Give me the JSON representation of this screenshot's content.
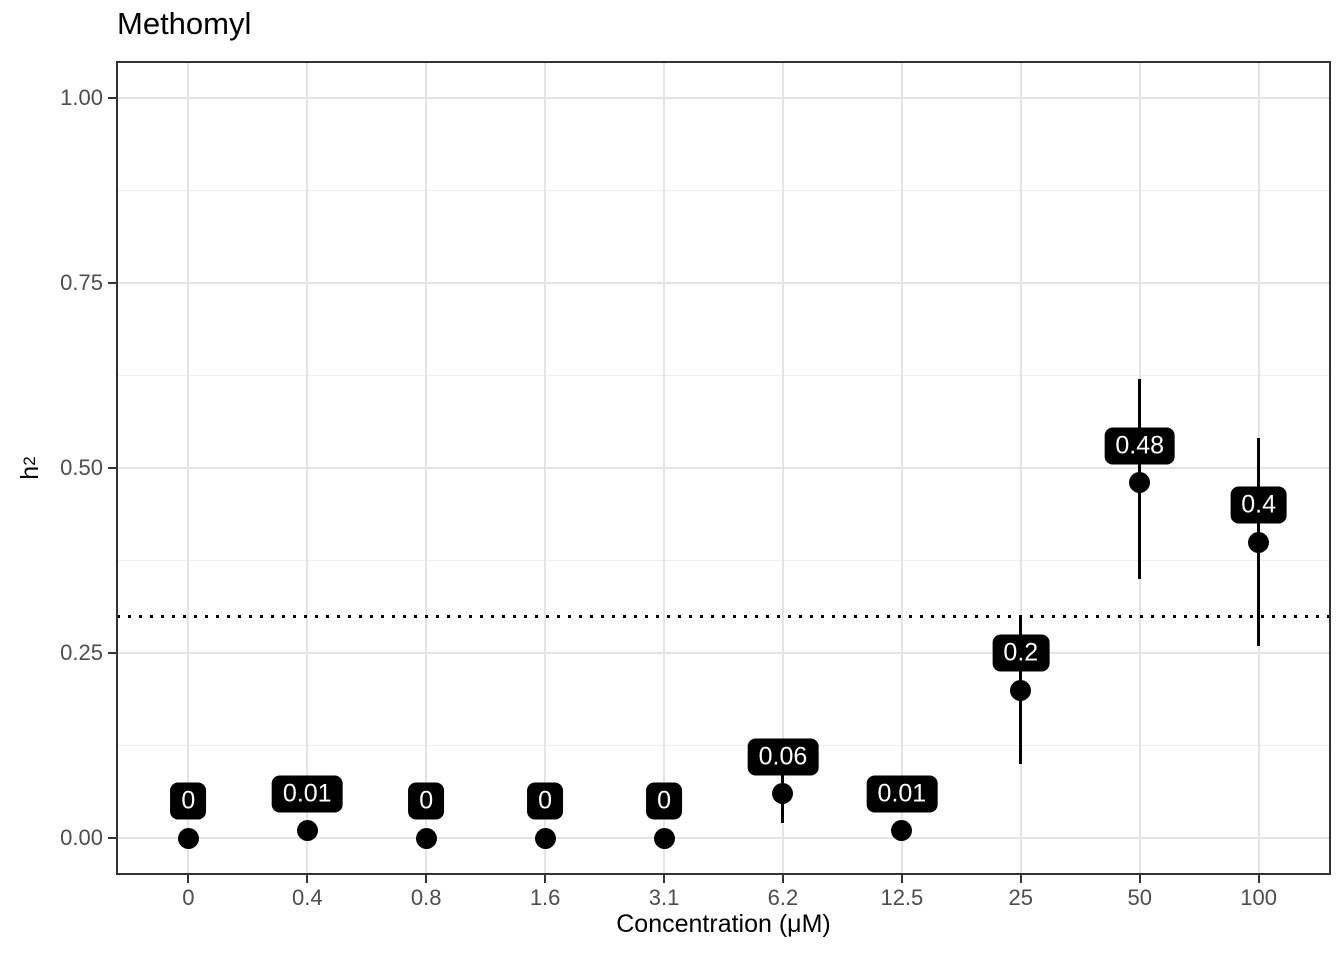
{
  "title": "Methomyl",
  "axes": {
    "x": {
      "title": "Concentration (μM)",
      "tick_labels": [
        "0",
        "0.4",
        "0.8",
        "1.6",
        "3.1",
        "6.2",
        "12.5",
        "25",
        "50",
        "100"
      ]
    },
    "y": {
      "title_base": "h",
      "title_sup": "2",
      "tick_labels": [
        "0.00",
        "0.25",
        "0.50",
        "0.75",
        "1.00"
      ],
      "tick_values": [
        0,
        0.25,
        0.5,
        0.75,
        1.0
      ]
    }
  },
  "colors": {
    "point": "#000000",
    "error_bar": "#000000",
    "label_background": "#000000",
    "label_text": "#ffffff",
    "grid_major": "#e4e4e4",
    "grid_minor": "#efefef",
    "panel_border": "#333333",
    "tick_label": "#4d4d4d",
    "reference_line": "#000000",
    "background": "#ffffff"
  },
  "chart_data": {
    "type": "scatter",
    "title": "Methomyl",
    "xlabel": "Concentration (μM)",
    "ylabel": "h^2",
    "categories": [
      "0",
      "0.4",
      "0.8",
      "1.6",
      "3.1",
      "6.2",
      "12.5",
      "25",
      "50",
      "100"
    ],
    "values": [
      0,
      0.01,
      0,
      0,
      0,
      0.06,
      0.01,
      0.2,
      0.48,
      0.4
    ],
    "point_labels": [
      "0",
      "0.01",
      "0",
      "0",
      "0",
      "0.06",
      "0.01",
      "0.2",
      "0.48",
      "0.4"
    ],
    "error_low": [
      null,
      null,
      null,
      null,
      null,
      0.02,
      null,
      0.1,
      0.35,
      0.26
    ],
    "error_high": [
      null,
      null,
      null,
      null,
      null,
      0.1,
      null,
      0.3,
      0.62,
      0.54
    ],
    "label_offset_y": 0.05,
    "reference_line_y": 0.3,
    "ylim": [
      -0.05,
      1.05
    ],
    "y_major_gridlines": [
      0,
      0.25,
      0.5,
      0.75,
      1.0
    ],
    "y_minor_gridlines": [
      0.125,
      0.375,
      0.625,
      0.875
    ],
    "grid": true,
    "legend": false
  }
}
